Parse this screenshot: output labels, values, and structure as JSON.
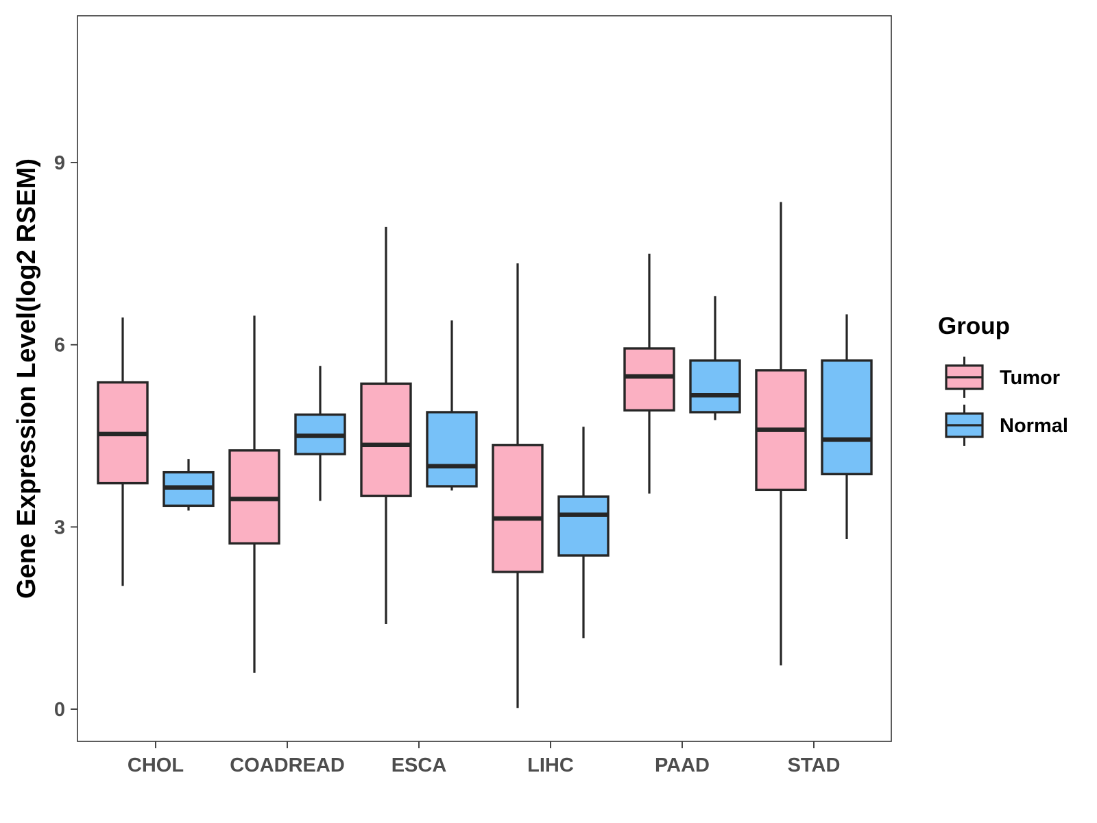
{
  "chart_data": {
    "type": "boxplot",
    "title": "",
    "xlabel": "",
    "ylabel": "Gene Expression Level(log2 RSEM)",
    "ylim": [
      -0.5,
      11.4
    ],
    "yticks": [
      0,
      3,
      6,
      9
    ],
    "grid": false,
    "categories": [
      "CHOL",
      "COADREAD",
      "ESCA",
      "LIHC",
      "PAAD",
      "STAD"
    ],
    "legend": {
      "title": "Group",
      "placement": "right",
      "entries": [
        {
          "name": "Tumor",
          "color": "#FBB0C2"
        },
        {
          "name": "Normal",
          "color": "#77C1F8"
        }
      ]
    },
    "series": [
      {
        "name": "Tumor",
        "color": "#FBB0C2",
        "boxes": [
          {
            "category": "CHOL",
            "min": 2.03,
            "q1": 3.72,
            "median": 4.53,
            "q3": 5.38,
            "max": 6.45
          },
          {
            "category": "COADREAD",
            "min": 0.6,
            "q1": 2.73,
            "median": 3.46,
            "q3": 4.26,
            "max": 6.48
          },
          {
            "category": "ESCA",
            "min": 1.4,
            "q1": 3.51,
            "median": 4.35,
            "q3": 5.36,
            "max": 7.94
          },
          {
            "category": "LIHC",
            "min": 0.02,
            "q1": 2.26,
            "median": 3.14,
            "q3": 4.35,
            "max": 7.34
          },
          {
            "category": "PAAD",
            "min": 3.55,
            "q1": 4.92,
            "median": 5.48,
            "q3": 5.94,
            "max": 7.5
          },
          {
            "category": "STAD",
            "min": 0.72,
            "q1": 3.61,
            "median": 4.6,
            "q3": 5.58,
            "max": 8.35
          }
        ]
      },
      {
        "name": "Normal",
        "color": "#77C1F8",
        "boxes": [
          {
            "category": "CHOL",
            "min": 3.27,
            "q1": 3.35,
            "median": 3.65,
            "q3": 3.9,
            "max": 4.12
          },
          {
            "category": "COADREAD",
            "min": 3.43,
            "q1": 4.2,
            "median": 4.5,
            "q3": 4.85,
            "max": 5.65
          },
          {
            "category": "ESCA",
            "min": 3.6,
            "q1": 3.67,
            "median": 4.0,
            "q3": 4.89,
            "max": 6.4
          },
          {
            "category": "LIHC",
            "min": 1.17,
            "q1": 2.53,
            "median": 3.2,
            "q3": 3.5,
            "max": 4.65
          },
          {
            "category": "PAAD",
            "min": 4.76,
            "q1": 4.89,
            "median": 5.17,
            "q3": 5.74,
            "max": 6.8
          },
          {
            "category": "STAD",
            "min": 2.8,
            "q1": 3.87,
            "median": 4.44,
            "q3": 5.74,
            "max": 6.5
          }
        ]
      }
    ]
  }
}
